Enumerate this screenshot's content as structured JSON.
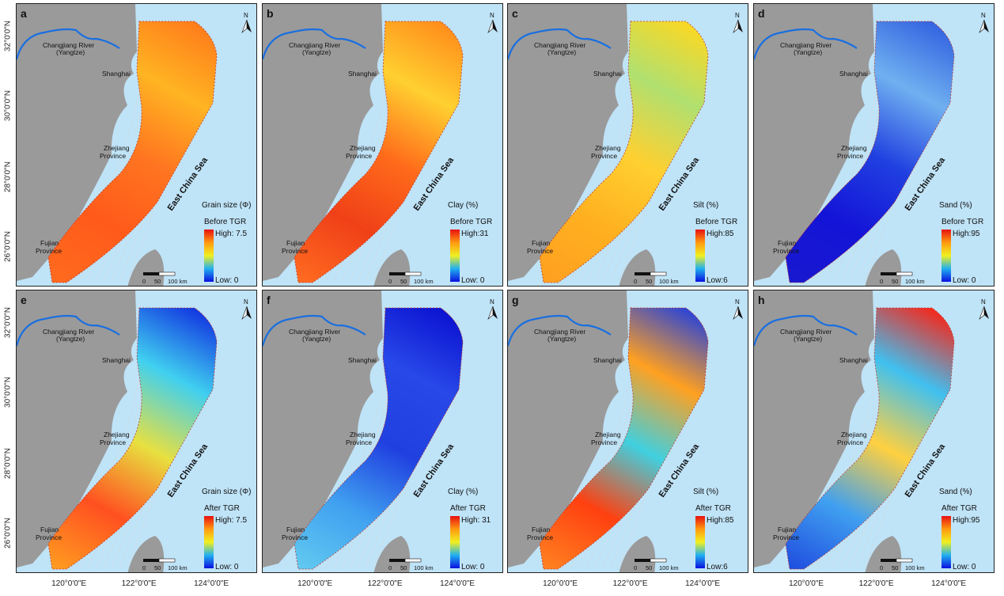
{
  "labels": {
    "river": "Changjiang River",
    "river_sub": "(Yangtze)",
    "shanghai": "Shanghai",
    "zhejiang": "Zhejiang",
    "province": "Province",
    "fujian": "Fujian",
    "sea": "East China Sea",
    "north": "N",
    "scale": [
      "0",
      "50",
      "100 km"
    ]
  },
  "latitude_ticks": [
    "32°0'0\"N",
    "30°0'0\"N",
    "28°0'0\"N",
    "26°0'0\"N"
  ],
  "longitude_ticks": [
    "120°0'0\"E",
    "122°0'0\"E",
    "124°0'0\"E"
  ],
  "colors": {
    "sea": "#bfe3f7",
    "land": "#9a9a9a",
    "river": "#1a6fe0",
    "boundary": "#c0392b"
  },
  "colorbar": [
    "#0a10e0",
    "#20b0f0",
    "#f0f020",
    "#ff9a10",
    "#e81010"
  ],
  "panels": [
    {
      "letter": "a",
      "variable": "Grain size (Φ)",
      "period": "Before TGR",
      "high": "High: 7.5",
      "low": "Low: 0",
      "field": [
        "#ff7a1a",
        "#ffb422",
        "#ff7420",
        "#ff5a1a",
        "#ff6a1e"
      ]
    },
    {
      "letter": "b",
      "variable": "Clay (%)",
      "period": "Before TGR",
      "high": "High:31",
      "low": "Low: 0",
      "field": [
        "#ff8a1a",
        "#ffd030",
        "#ff6a1a",
        "#f04018",
        "#ff6a20"
      ]
    },
    {
      "letter": "c",
      "variable": "Silt (%)",
      "period": "Before TGR",
      "high": "High:85",
      "low": "Low:6",
      "field": [
        "#ffd820",
        "#b0e070",
        "#ffd030",
        "#ffb020",
        "#ffa020"
      ]
    },
    {
      "letter": "d",
      "variable": "Sand (%)",
      "period": "Before TGR",
      "high": "High:95",
      "low": "Low: 0",
      "field": [
        "#3060e0",
        "#70b0f0",
        "#2040e0",
        "#1414d8",
        "#1818d0"
      ]
    },
    {
      "letter": "e",
      "variable": "Grain size (Φ)",
      "period": "After TGR",
      "high": "High: 7.5",
      "low": "Low: 0",
      "field": [
        "#1030e0",
        "#40d0f0",
        "#e8e040",
        "#ff5020",
        "#ff9a20"
      ]
    },
    {
      "letter": "f",
      "variable": "Clay (%)",
      "period": "After TGR",
      "high": "High: 31",
      "low": "Low: 0",
      "field": [
        "#0a10d0",
        "#2848e8",
        "#2040e0",
        "#40a0f0",
        "#60c8f0"
      ]
    },
    {
      "letter": "g",
      "variable": "Silt (%)",
      "period": "After TGR",
      "high": "High:85",
      "low": "Low:6",
      "field": [
        "#2040e0",
        "#ffa020",
        "#40d0e0",
        "#ff4010",
        "#ff8020"
      ]
    },
    {
      "letter": "h",
      "variable": "Sand (%)",
      "period": "After TGR",
      "high": "High:95",
      "low": "Low: 0",
      "field": [
        "#ff2010",
        "#40c0f0",
        "#ffd040",
        "#40a0f0",
        "#2050e0"
      ]
    }
  ]
}
